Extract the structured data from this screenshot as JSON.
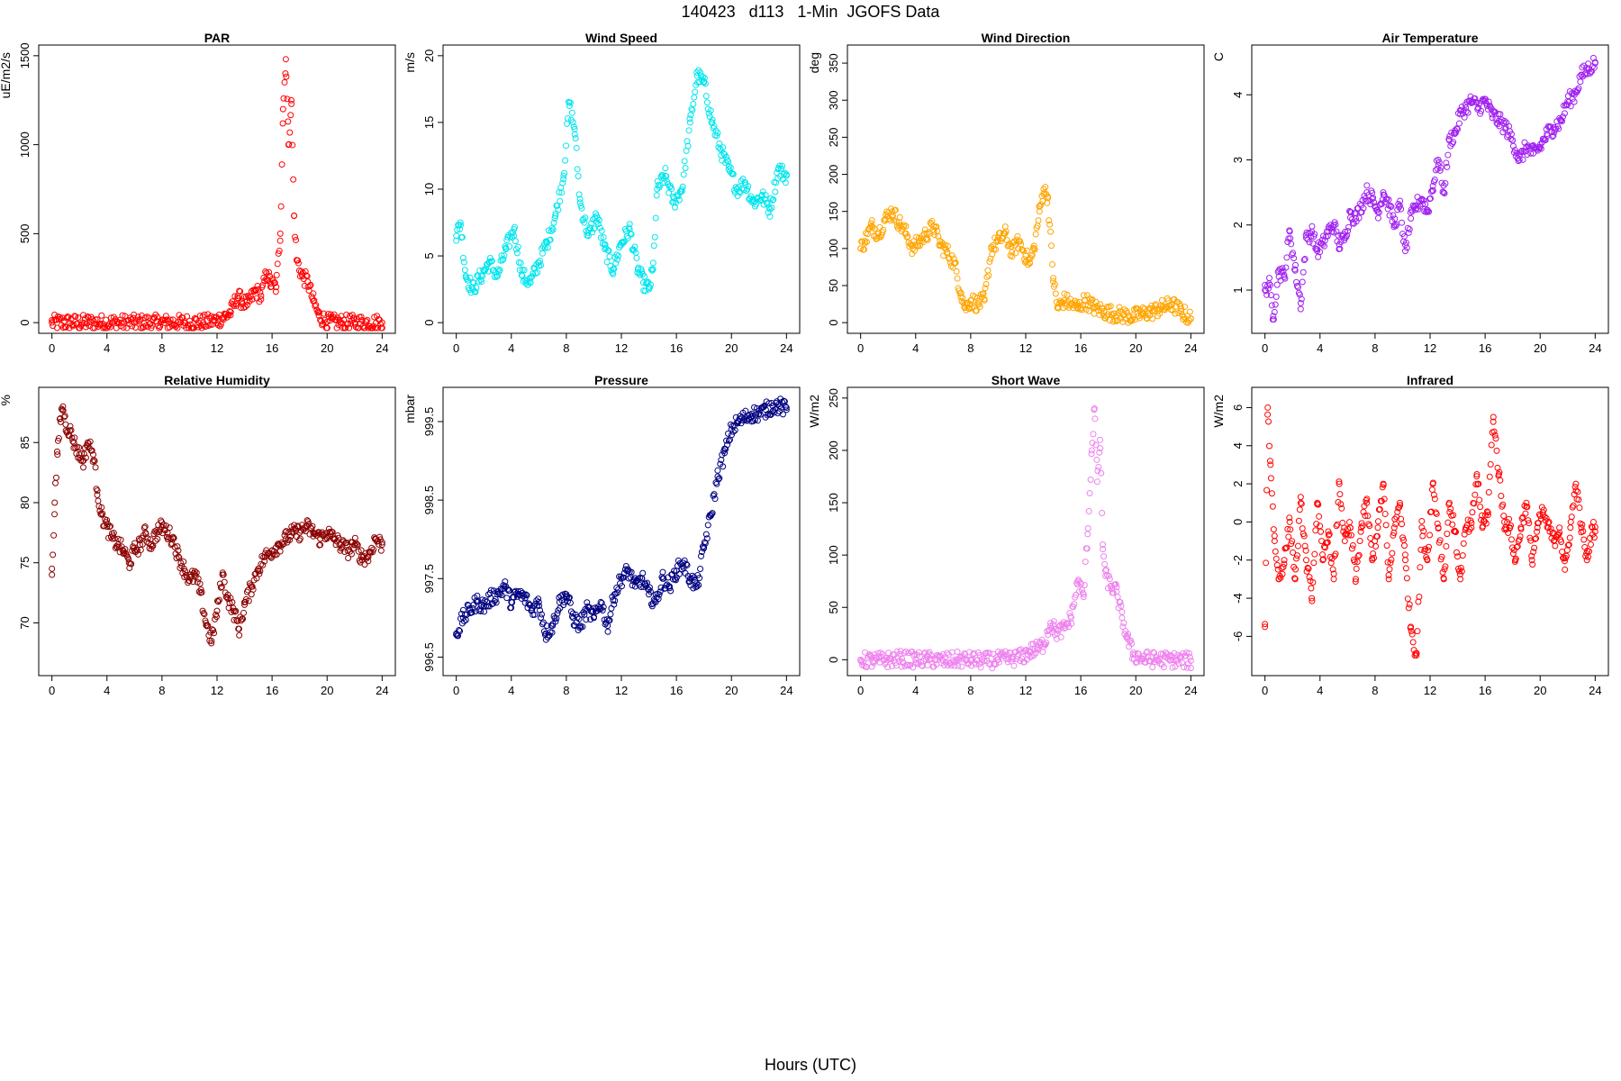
{
  "title": "140423   d113   1-Min  JGOFS Data",
  "x_axis_label": "Hours (UTC)",
  "chart_data": [
    {
      "type": "scatter",
      "title": "PAR",
      "ylabel": "uE/m2/s",
      "color": "#ff0000",
      "xlim": [
        0,
        24
      ],
      "ylim": [
        0,
        1500
      ],
      "xticks": [
        0,
        4,
        8,
        12,
        16,
        20,
        24
      ],
      "yticks": [
        0,
        500,
        1000,
        1500
      ],
      "x": [
        0,
        11,
        11.8,
        12.5,
        13,
        13.5,
        13.8,
        14.2,
        14.8,
        15.2,
        15.6,
        15.9,
        16.3,
        16.6,
        16.8,
        17,
        17.2,
        17.4,
        17.6,
        17.8,
        18.2,
        18.6,
        19,
        19.4,
        20,
        21,
        22,
        24
      ],
      "y": [
        0,
        0,
        10,
        30,
        60,
        150,
        120,
        100,
        180,
        150,
        280,
        220,
        200,
        500,
        1200,
        1480,
        1000,
        1250,
        600,
        350,
        260,
        230,
        120,
        40,
        5,
        0,
        0,
        0
      ]
    },
    {
      "type": "scatter",
      "title": "Wind Speed",
      "ylabel": "m/s",
      "color": "#00e5ee",
      "xlim": [
        0,
        24
      ],
      "ylim": [
        0,
        20
      ],
      "xticks": [
        0,
        4,
        8,
        12,
        16,
        20,
        24
      ],
      "yticks": [
        0,
        5,
        10,
        15,
        20
      ],
      "x": [
        0,
        0.3,
        0.7,
        1.2,
        1.8,
        2.4,
        3,
        3.6,
        4.2,
        4.8,
        5.4,
        6,
        6.6,
        7.2,
        7.8,
        8.2,
        8.6,
        9,
        9.6,
        10.2,
        10.8,
        11.4,
        12,
        12.6,
        13.2,
        13.6,
        14,
        14.3,
        14.6,
        15.2,
        15.8,
        16.4,
        17,
        17.5,
        18,
        18.6,
        19.2,
        19.8,
        20.4,
        21,
        21.6,
        22.2,
        22.8,
        23.4,
        24
      ],
      "y": [
        6.5,
        7.5,
        3.5,
        2.5,
        3.5,
        4.5,
        3.5,
        5.5,
        7,
        3.5,
        3,
        4.5,
        6,
        8,
        11,
        16.5,
        14.5,
        9,
        6.5,
        8,
        5.5,
        4,
        6,
        7,
        4,
        3,
        2.5,
        4,
        10,
        11,
        9,
        10,
        15,
        18.5,
        18,
        15,
        13,
        11.5,
        10,
        10.5,
        9,
        9.5,
        8.5,
        11.5,
        11
      ]
    },
    {
      "type": "scatter",
      "title": "Wind Direction",
      "ylabel": "deg",
      "color": "#ffa500",
      "xlim": [
        0,
        24
      ],
      "ylim": [
        0,
        360
      ],
      "xticks": [
        0,
        4,
        8,
        12,
        16,
        20,
        24
      ],
      "yticks": [
        0,
        50,
        100,
        150,
        200,
        250,
        300,
        350
      ],
      "x": [
        0,
        0.3,
        0.8,
        1.3,
        1.8,
        2.3,
        2.8,
        3.3,
        3.8,
        4.3,
        4.8,
        5.3,
        5.8,
        6.3,
        6.8,
        7.3,
        7.6,
        8,
        8.5,
        9,
        9.5,
        10,
        10.5,
        11,
        11.5,
        12,
        12.3,
        12.6,
        13,
        13.3,
        13.6,
        14,
        14.3,
        14.8,
        15.3,
        15.8,
        16.3,
        17,
        17.7,
        18.4,
        19.1,
        19.8,
        20.5,
        21.2,
        21.9,
        22.6,
        23.3,
        24
      ],
      "y": [
        100,
        110,
        130,
        120,
        140,
        150,
        135,
        120,
        100,
        110,
        120,
        130,
        105,
        95,
        80,
        40,
        20,
        30,
        25,
        30,
        100,
        110,
        120,
        95,
        110,
        90,
        80,
        100,
        150,
        180,
        170,
        60,
        20,
        30,
        25,
        20,
        30,
        20,
        15,
        12,
        10,
        8,
        12,
        15,
        20,
        25,
        15,
        5
      ]
    },
    {
      "type": "scatter",
      "title": "Air Temperature",
      "ylabel": "C",
      "color": "#a020f0",
      "xlim": [
        0,
        24
      ],
      "ylim": [
        0.5,
        4.6
      ],
      "xticks": [
        0,
        4,
        8,
        12,
        16,
        20,
        24
      ],
      "yticks": [
        1,
        2,
        3,
        4
      ],
      "x": [
        0,
        0.3,
        0.6,
        1,
        1.4,
        1.8,
        2.2,
        2.6,
        3,
        3.4,
        3.8,
        4.2,
        4.6,
        5,
        5.4,
        5.8,
        6.2,
        6.6,
        7,
        7.4,
        7.8,
        8.2,
        8.6,
        9,
        9.4,
        9.8,
        10.2,
        10.6,
        11,
        11.4,
        11.8,
        12.2,
        12.6,
        13,
        13.4,
        13.8,
        14.2,
        14.6,
        15,
        15.5,
        16,
        16.5,
        17,
        17.5,
        18,
        18.5,
        19,
        19.5,
        20,
        20.5,
        21,
        21.5,
        22,
        22.5,
        23,
        23.5,
        24
      ],
      "y": [
        1,
        1.1,
        0.6,
        1.3,
        1.2,
        1.9,
        1.3,
        0.8,
        1.8,
        1.9,
        1.6,
        1.7,
        1.9,
        2,
        1.7,
        1.8,
        2.2,
        2.1,
        2.3,
        2.5,
        2.4,
        2.2,
        2.5,
        2.3,
        2,
        2.3,
        1.6,
        2.1,
        2.3,
        2.4,
        2.2,
        2.6,
        3,
        2.5,
        3.3,
        3.4,
        3.7,
        3.8,
        3.9,
        3.8,
        3.9,
        3.7,
        3.6,
        3.5,
        3.3,
        3,
        3.2,
        3.1,
        3.2,
        3.4,
        3.5,
        3.6,
        3.9,
        4,
        4.3,
        4.4,
        4.5
      ]
    },
    {
      "type": "scatter",
      "title": "Relative Humidity",
      "ylabel": "%",
      "color": "#8b0000",
      "xlim": [
        0,
        24
      ],
      "ylim": [
        66.5,
        88.7
      ],
      "xticks": [
        0,
        4,
        8,
        12,
        16,
        20,
        24
      ],
      "yticks": [
        70,
        75,
        80,
        85
      ],
      "x": [
        0,
        0.2,
        0.4,
        0.6,
        0.8,
        1,
        1.3,
        1.6,
        2,
        2.3,
        2.6,
        3,
        3.3,
        3.6,
        4,
        4.4,
        4.8,
        5.2,
        5.6,
        6,
        6.4,
        6.8,
        7.2,
        7.6,
        8,
        8.4,
        8.8,
        9.2,
        9.6,
        10,
        10.4,
        10.8,
        11.2,
        11.6,
        12,
        12.4,
        12.8,
        13.2,
        13.6,
        14,
        14.5,
        15,
        15.5,
        16,
        16.5,
        17,
        17.5,
        18,
        18.5,
        19,
        19.5,
        20,
        20.5,
        21,
        21.5,
        22,
        22.5,
        23,
        23.5,
        24
      ],
      "y": [
        74,
        80,
        84,
        87,
        88,
        86.5,
        86,
        85,
        84,
        83.5,
        85,
        84,
        81,
        79,
        78,
        77,
        76.5,
        76,
        75,
        76,
        76.5,
        77.5,
        76.5,
        77.5,
        78,
        77.5,
        77,
        75.5,
        74.5,
        73.5,
        74,
        72.5,
        70,
        68.5,
        71,
        74,
        72,
        71,
        69.5,
        71.5,
        73,
        74.5,
        75.5,
        76,
        76.5,
        77,
        77.5,
        77.5,
        78,
        77.5,
        77,
        77.5,
        77,
        76.5,
        76,
        76.5,
        75.5,
        75.5,
        77,
        76.5
      ]
    },
    {
      "type": "scatter",
      "title": "Pressure",
      "ylabel": "mbar",
      "color": "#000080",
      "xlim": [
        0,
        24
      ],
      "ylim": [
        996.4,
        999.8
      ],
      "xticks": [
        0,
        4,
        8,
        12,
        16,
        20,
        24
      ],
      "yticks": [
        996.5,
        997.5,
        998.5,
        999.5
      ],
      "x": [
        0,
        0.5,
        1,
        1.5,
        2,
        2.5,
        3,
        3.5,
        4,
        4.5,
        5,
        5.5,
        6,
        6.5,
        7,
        7.5,
        8,
        8.5,
        9,
        9.5,
        10,
        10.5,
        11,
        11.5,
        12,
        12.5,
        13,
        13.5,
        14,
        14.5,
        15,
        15.5,
        16,
        16.5,
        17,
        17.5,
        18,
        18.5,
        19,
        19.5,
        20,
        20.5,
        21,
        21.5,
        22,
        22.5,
        23,
        23.5,
        24
      ],
      "y": [
        996.8,
        997,
        997.1,
        997.2,
        997.15,
        997.25,
        997.3,
        997.4,
        997.2,
        997.3,
        997.25,
        997.1,
        997.2,
        996.8,
        996.9,
        997.2,
        997.3,
        997.0,
        996.9,
        997.1,
        997.0,
        997.2,
        996.9,
        997.3,
        997.5,
        997.6,
        997.4,
        997.5,
        997.3,
        997.2,
        997.5,
        997.4,
        997.6,
        997.7,
        997.5,
        997.4,
        997.9,
        998.3,
        998.8,
        999.1,
        999.4,
        999.5,
        999.55,
        999.6,
        999.6,
        999.65,
        999.7,
        999.7,
        999.65
      ]
    },
    {
      "type": "scatter",
      "title": "Short Wave",
      "ylabel": "W/m2",
      "color": "#ee82ee",
      "xlim": [
        0,
        24
      ],
      "ylim": [
        -5,
        250
      ],
      "xticks": [
        0,
        4,
        8,
        12,
        16,
        20,
        24
      ],
      "yticks": [
        0,
        50,
        100,
        150,
        200,
        250
      ],
      "x": [
        0,
        1,
        2,
        3,
        4,
        5,
        6,
        7,
        8,
        9,
        10,
        11,
        11.8,
        12.3,
        12.8,
        13.3,
        13.8,
        14.3,
        14.8,
        15.3,
        15.8,
        16.2,
        16.5,
        16.8,
        17,
        17.2,
        17.4,
        17.6,
        17.8,
        18.2,
        18.6,
        19,
        19.4,
        19.8,
        20.5,
        21.5,
        22.5,
        24
      ],
      "y": [
        0,
        -1,
        0,
        1,
        0,
        0,
        -1,
        0,
        0,
        -1,
        0,
        1,
        3,
        8,
        10,
        15,
        35,
        25,
        30,
        40,
        75,
        60,
        120,
        200,
        240,
        170,
        210,
        110,
        80,
        70,
        65,
        40,
        20,
        5,
        1,
        0,
        0,
        -1
      ]
    },
    {
      "type": "scatter",
      "title": "Infrared",
      "ylabel": "W/m2",
      "color": "#ff0000",
      "xlim": [
        0,
        24
      ],
      "ylim": [
        -7.5,
        6.5
      ],
      "xticks": [
        0,
        4,
        8,
        12,
        16,
        20,
        24
      ],
      "yticks": [
        -6,
        -4,
        -2,
        0,
        2,
        4,
        6
      ],
      "x": [
        0,
        0.2,
        0.4,
        0.7,
        1,
        1.4,
        1.8,
        2.2,
        2.6,
        3,
        3.4,
        3.8,
        4.2,
        4.6,
        5,
        5.4,
        5.8,
        6.2,
        6.6,
        7,
        7.4,
        7.8,
        8.2,
        8.6,
        9,
        9.4,
        9.8,
        10.2,
        10.6,
        11,
        11.4,
        11.8,
        12.2,
        12.6,
        13,
        13.4,
        13.8,
        14.2,
        14.6,
        15,
        15.4,
        15.8,
        16.2,
        16.6,
        17,
        17.4,
        17.8,
        18.2,
        18.6,
        19,
        19.4,
        19.8,
        20.2,
        20.6,
        21,
        21.4,
        21.8,
        22.2,
        22.6,
        23,
        23.4,
        23.8,
        24
      ],
      "y": [
        -5.5,
        6,
        3,
        -1,
        -3,
        -2,
        0,
        -3,
        1,
        -2,
        -4,
        1,
        -2,
        -0.5,
        -3,
        2,
        -1,
        -0.3,
        -3,
        -0.3,
        1,
        -2,
        -0.3,
        2,
        -3,
        -0.3,
        1,
        -2,
        -5.5,
        -7,
        -0.3,
        -2,
        2,
        -0.3,
        -3,
        1,
        -0.5,
        -3,
        -0.3,
        -0.3,
        2.5,
        -0.3,
        0.5,
        5.5,
        2.5,
        0,
        -0.3,
        -2,
        -0.3,
        1,
        -2,
        -0.3,
        0.5,
        -0.3,
        -1,
        -0.3,
        -2.5,
        -0.3,
        2,
        -0.3,
        -2,
        -0.3,
        -0.5
      ]
    }
  ]
}
